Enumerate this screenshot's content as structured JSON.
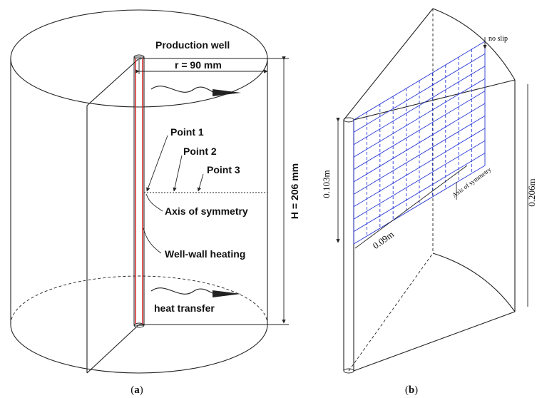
{
  "panel_a": {
    "caption_open": "(",
    "caption_letter": "a",
    "caption_close": ")",
    "production_well": "Production well",
    "radius_label": "r = 90 mm",
    "height_label": "H = 206 mm",
    "point_1": "Point 1",
    "point_2": "Point 2",
    "point_3": "Point 3",
    "axis_of_symmetry": "Axis of symmetry",
    "well_wall_heating": "Well-wall heating",
    "heat_transfer": "heat transfer",
    "heating_color": "#d62728"
  },
  "panel_b": {
    "caption_open": "(",
    "caption_letter": "b",
    "caption_close": ")",
    "no_slip": "no slip",
    "height_label": "0.103m",
    "width_label": "0.09m",
    "axis_of_symmetry": "Axis of symmetry",
    "total_height_label": "0.206m",
    "mesh_color": "#2b3bd6"
  }
}
